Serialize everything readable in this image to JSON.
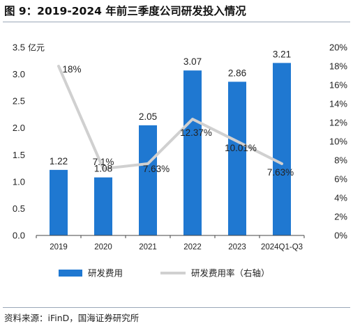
{
  "header": {
    "title": "图 9：2019-2024 年前三季度公司研发投入情况"
  },
  "footer": {
    "source": "资料来源：iFinD，国海证券研究所"
  },
  "chart_data": {
    "type": "bar",
    "categories": [
      "2019",
      "2020",
      "2021",
      "2022",
      "2023",
      "2024Q1-Q3"
    ],
    "series": [
      {
        "name": "研发费用",
        "type": "bar",
        "axis": "left",
        "values": [
          1.22,
          1.08,
          2.05,
          3.07,
          2.86,
          3.21
        ],
        "labels": [
          "1.22",
          "1.08",
          "2.05",
          "3.07",
          "2.86",
          "3.21"
        ],
        "color": "#1f78d1"
      },
      {
        "name": "研发费用率（右轴）",
        "type": "line",
        "axis": "right",
        "values": [
          18,
          7.1,
          7.63,
          12.37,
          10.01,
          7.63
        ],
        "labels": [
          "18%",
          "7.1%",
          "7.63%",
          "12.37%",
          "10.01%",
          "7.63%"
        ],
        "color": "#d0d0d0"
      }
    ],
    "y_left": {
      "unit_label": "亿元",
      "ylim": [
        0,
        3.5
      ],
      "ticks": [
        "0.0",
        "0.5",
        "1.0",
        "1.5",
        "2.0",
        "2.5",
        "3.0",
        "3.5"
      ]
    },
    "y_right": {
      "ylim": [
        0,
        20
      ],
      "ticks": [
        "0%",
        "2%",
        "4%",
        "6%",
        "8%",
        "10%",
        "12%",
        "14%",
        "16%",
        "18%",
        "20%"
      ]
    },
    "grid": false,
    "legend": "bottom"
  }
}
